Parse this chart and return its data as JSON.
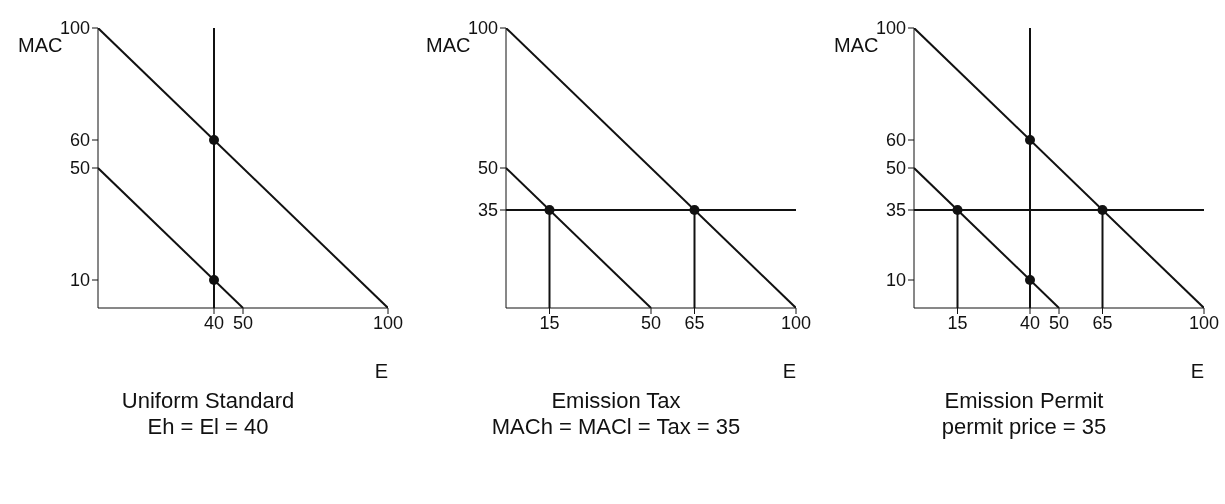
{
  "chart_data": [
    {
      "type": "line",
      "title": "Uniform Standard",
      "subtitle": "Eh = El = 40",
      "xlabel": "E",
      "ylabel": "MAC",
      "xlim": [
        0,
        100
      ],
      "ylim": [
        0,
        100
      ],
      "xticks": [
        40,
        50,
        100
      ],
      "yticks": [
        10,
        50,
        60,
        100
      ],
      "grid": false,
      "line_style": "solid",
      "series": [
        {
          "type": "line",
          "color": "#111111",
          "x": [
            0,
            100
          ],
          "values": [
            100,
            0
          ],
          "marker": "none"
        },
        {
          "type": "line",
          "color": "#111111",
          "x": [
            0,
            50
          ],
          "values": [
            50,
            0
          ],
          "marker": "none"
        },
        {
          "type": "scatter",
          "color": "#111111",
          "x": [
            40,
            40
          ],
          "values": [
            60,
            10
          ],
          "marker": "circle"
        }
      ],
      "ref_lines": [
        {
          "axis": "x",
          "value": 40,
          "color": "#111111"
        }
      ]
    },
    {
      "type": "line",
      "title": "Emission Tax",
      "subtitle": "MACh = MACl = Tax = 35",
      "xlabel": "E",
      "ylabel": "MAC",
      "xlim": [
        0,
        100
      ],
      "ylim": [
        0,
        100
      ],
      "xticks": [
        15,
        50,
        65,
        100
      ],
      "yticks": [
        35,
        50,
        100
      ],
      "grid": false,
      "line_style": "solid",
      "series": [
        {
          "type": "line",
          "color": "#111111",
          "x": [
            0,
            100
          ],
          "values": [
            100,
            0
          ],
          "marker": "none"
        },
        {
          "type": "line",
          "color": "#111111",
          "x": [
            0,
            50
          ],
          "values": [
            50,
            0
          ],
          "marker": "none"
        },
        {
          "type": "line",
          "color": "#111111",
          "x": [
            15,
            15
          ],
          "values": [
            35,
            0
          ],
          "marker": "none"
        },
        {
          "type": "line",
          "color": "#111111",
          "x": [
            65,
            65
          ],
          "values": [
            35,
            0
          ],
          "marker": "none"
        },
        {
          "type": "scatter",
          "color": "#111111",
          "x": [
            15,
            65
          ],
          "values": [
            35,
            35
          ],
          "marker": "circle"
        }
      ],
      "ref_lines": [
        {
          "axis": "y",
          "value": 35,
          "color": "#111111"
        }
      ]
    },
    {
      "type": "line",
      "title": "Emission Permit",
      "subtitle": "permit price = 35",
      "xlabel": "E",
      "ylabel": "MAC",
      "xlim": [
        0,
        100
      ],
      "ylim": [
        0,
        100
      ],
      "xticks": [
        15,
        40,
        50,
        65,
        100
      ],
      "yticks": [
        10,
        35,
        50,
        60,
        100
      ],
      "grid": false,
      "line_style": "solid",
      "series": [
        {
          "type": "line",
          "color": "#111111",
          "x": [
            0,
            100
          ],
          "values": [
            100,
            0
          ],
          "marker": "none"
        },
        {
          "type": "line",
          "color": "#111111",
          "x": [
            0,
            50
          ],
          "values": [
            50,
            0
          ],
          "marker": "none"
        },
        {
          "type": "line",
          "color": "#111111",
          "x": [
            15,
            15
          ],
          "values": [
            35,
            0
          ],
          "marker": "none"
        },
        {
          "type": "line",
          "color": "#111111",
          "x": [
            65,
            65
          ],
          "values": [
            35,
            0
          ],
          "marker": "none"
        },
        {
          "type": "scatter",
          "color": "#111111",
          "x": [
            40,
            15,
            65,
            40
          ],
          "values": [
            60,
            35,
            35,
            10
          ],
          "marker": "circle"
        }
      ],
      "ref_lines": [
        {
          "axis": "y",
          "value": 35,
          "color": "#111111"
        },
        {
          "axis": "x",
          "value": 40,
          "color": "#111111"
        }
      ]
    }
  ]
}
